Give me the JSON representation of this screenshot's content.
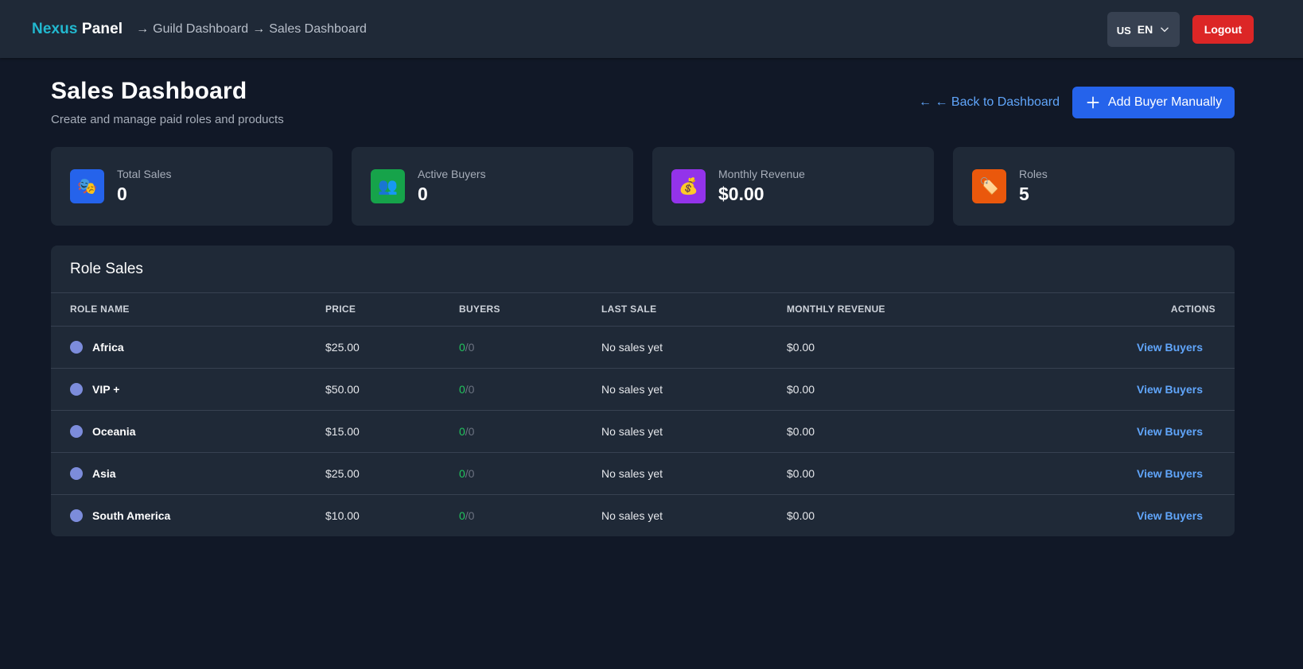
{
  "topbar": {
    "brand_first": "Nexus",
    "brand_second": "Panel",
    "breadcrumb": [
      {
        "sep": "→",
        "label": "Guild Dashboard"
      },
      {
        "sep": "→",
        "label": "Sales Dashboard"
      }
    ],
    "language": {
      "flag": "US",
      "code": "EN"
    },
    "logout_label": "Logout"
  },
  "header": {
    "title": "Sales Dashboard",
    "subtitle": "Create and manage paid roles and products",
    "back_label": "← ← Back to Dashboard",
    "add_buyer_label": "Add Buyer Manually"
  },
  "stats": [
    {
      "label": "Total Sales",
      "value": "0",
      "icon": "masks-icon",
      "glyph": "🎭",
      "color": "#2563eb"
    },
    {
      "label": "Active Buyers",
      "value": "0",
      "icon": "users-icon",
      "glyph": "👥",
      "color": "#16a34a"
    },
    {
      "label": "Monthly Revenue",
      "value": "$0.00",
      "icon": "money-bag-icon",
      "glyph": "💰",
      "color": "#9333ea"
    },
    {
      "label": "Roles",
      "value": "5",
      "icon": "tag-icon",
      "glyph": "🏷️",
      "color": "#ea580c"
    }
  ],
  "role_sales": {
    "title": "Role Sales",
    "columns": [
      "ROLE NAME",
      "PRICE",
      "BUYERS",
      "LAST SALE",
      "MONTHLY REVENUE",
      "ACTIONS"
    ],
    "rows": [
      {
        "name": "Africa",
        "color": "#7c8cdb",
        "price": "$25.00",
        "buyers_active": "0",
        "buyers_total": "/0",
        "last_sale": "No sales yet",
        "revenue": "$0.00",
        "action": "View Buyers"
      },
      {
        "name": "VIP +",
        "color": "#7c8cdb",
        "price": "$50.00",
        "buyers_active": "0",
        "buyers_total": "/0",
        "last_sale": "No sales yet",
        "revenue": "$0.00",
        "action": "View Buyers"
      },
      {
        "name": "Oceania",
        "color": "#7c8cdb",
        "price": "$15.00",
        "buyers_active": "0",
        "buyers_total": "/0",
        "last_sale": "No sales yet",
        "revenue": "$0.00",
        "action": "View Buyers"
      },
      {
        "name": "Asia",
        "color": "#7c8cdb",
        "price": "$25.00",
        "buyers_active": "0",
        "buyers_total": "/0",
        "last_sale": "No sales yet",
        "revenue": "$0.00",
        "action": "View Buyers"
      },
      {
        "name": "South America",
        "color": "#7c8cdb",
        "price": "$10.00",
        "buyers_active": "0",
        "buyers_total": "/0",
        "last_sale": "No sales yet",
        "revenue": "$0.00",
        "action": "View Buyers"
      }
    ]
  }
}
